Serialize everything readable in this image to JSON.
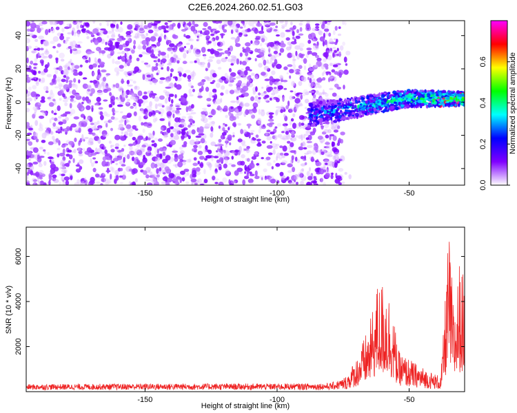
{
  "title": "C2E6.2024.260.02.51.G03",
  "chart_data": [
    {
      "type": "heatmap",
      "description_free": true,
      "xlabel": "Height of straight line (km)",
      "ylabel": "Frequency (Hz)",
      "xlim": [
        -195,
        -29
      ],
      "ylim": [
        -50,
        49
      ],
      "x_ticks": [
        -150,
        -100,
        -50
      ],
      "x_tick_labels": [
        "-150",
        "-100",
        "-50"
      ],
      "y_ticks": [
        -40,
        -20,
        0,
        20,
        40
      ],
      "y_tick_labels": [
        "-40",
        "-20",
        "0",
        "20",
        "40"
      ],
      "grid": false,
      "colorbar": {
        "label": "Normalized spectral amplitude",
        "range": [
          0,
          0.8
        ],
        "ticks": [
          0,
          0.2,
          0.4,
          0.6
        ],
        "tick_labels": [
          "0.0",
          "0.2",
          "0.4",
          "0.6"
        ],
        "colormap": [
          "#ffffff",
          "#7f00ff",
          "#0000ff",
          "#00ffff",
          "#00ff00",
          "#ffff00",
          "#ff0000",
          "#ff00ff"
        ]
      },
      "features": {
        "noise_region_x": [
          -195,
          -78
        ],
        "signal_start_x": -88,
        "signal_band": {
          "x": [
            -88,
            -29
          ],
          "freq_start": -8,
          "freq_end": 2,
          "peak_amplitude": 0.8
        }
      }
    },
    {
      "type": "line",
      "xlabel": "Height of straight line (km)",
      "ylabel": "SNR (10 * v/v)",
      "xlim": [
        -195,
        -29
      ],
      "ylim": [
        0,
        7300
      ],
      "x_ticks": [
        -150,
        -100,
        -50
      ],
      "x_tick_labels": [
        "-150",
        "-100",
        "-50"
      ],
      "y_ticks": [
        2000,
        4000,
        6000
      ],
      "y_tick_labels": [
        "2000",
        "4000",
        "6000"
      ],
      "grid": false,
      "series_color": "#ee2222",
      "envelope": [
        {
          "x": -195,
          "y": 250
        },
        {
          "x": -150,
          "y": 280
        },
        {
          "x": -100,
          "y": 280
        },
        {
          "x": -80,
          "y": 300
        },
        {
          "x": -75,
          "y": 500
        },
        {
          "x": -70,
          "y": 1500
        },
        {
          "x": -65,
          "y": 3000
        },
        {
          "x": -62,
          "y": 4800
        },
        {
          "x": -59,
          "y": 5000
        },
        {
          "x": -57,
          "y": 4200
        },
        {
          "x": -54,
          "y": 1800
        },
        {
          "x": -48,
          "y": 1300
        },
        {
          "x": -42,
          "y": 900
        },
        {
          "x": -38,
          "y": 700
        },
        {
          "x": -37,
          "y": 2700
        },
        {
          "x": -35,
          "y": 7300
        },
        {
          "x": -33,
          "y": 3500
        },
        {
          "x": -31,
          "y": 5800
        },
        {
          "x": -29,
          "y": 5000
        }
      ]
    }
  ]
}
